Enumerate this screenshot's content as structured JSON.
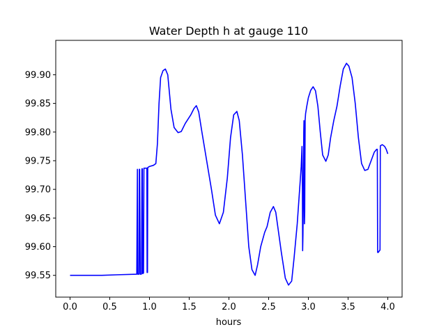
{
  "chart_data": {
    "type": "line",
    "title": "Water Depth h at gauge 110",
    "xlabel": "hours",
    "ylabel": "",
    "xlim": [
      -0.18,
      4.18
    ],
    "ylim": [
      99.512,
      99.96
    ],
    "grid": false,
    "legend": "none",
    "xticks": [
      0.0,
      0.5,
      1.0,
      1.5,
      2.0,
      2.5,
      3.0,
      3.5,
      4.0
    ],
    "xtick_labels": [
      "0.0",
      "0.5",
      "1.0",
      "1.5",
      "2.0",
      "2.5",
      "3.0",
      "3.5",
      "4.0"
    ],
    "yticks": [
      99.55,
      99.6,
      99.65,
      99.7,
      99.75,
      99.8,
      99.85,
      99.9
    ],
    "ytick_labels": [
      "99.55",
      "99.60",
      "99.65",
      "99.70",
      "99.75",
      "99.80",
      "99.85",
      "99.90"
    ],
    "series": [
      {
        "color": "#0000ff",
        "points": [
          [
            0.0,
            99.55
          ],
          [
            0.2,
            99.55
          ],
          [
            0.4,
            99.55
          ],
          [
            0.6,
            99.551
          ],
          [
            0.84,
            99.552
          ],
          [
            0.848,
            99.735
          ],
          [
            0.852,
            99.552
          ],
          [
            0.868,
            99.552
          ],
          [
            0.872,
            99.735
          ],
          [
            0.876,
            99.735
          ],
          [
            0.884,
            99.552
          ],
          [
            0.896,
            99.552
          ],
          [
            0.9,
            99.553
          ],
          [
            0.905,
            99.736
          ],
          [
            0.91,
            99.736
          ],
          [
            0.915,
            99.553
          ],
          [
            0.925,
            99.554
          ],
          [
            0.93,
            99.737
          ],
          [
            0.94,
            99.737
          ],
          [
            0.96,
            99.737
          ],
          [
            0.967,
            99.737
          ],
          [
            0.97,
            99.555
          ],
          [
            0.975,
            99.555
          ],
          [
            0.978,
            99.738
          ],
          [
            1.0,
            99.74
          ],
          [
            1.05,
            99.742
          ],
          [
            1.08,
            99.745
          ],
          [
            1.1,
            99.78
          ],
          [
            1.12,
            99.85
          ],
          [
            1.14,
            99.895
          ],
          [
            1.17,
            99.907
          ],
          [
            1.2,
            99.91
          ],
          [
            1.23,
            99.9
          ],
          [
            1.27,
            99.84
          ],
          [
            1.31,
            99.808
          ],
          [
            1.36,
            99.799
          ],
          [
            1.4,
            99.801
          ],
          [
            1.45,
            99.815
          ],
          [
            1.52,
            99.83
          ],
          [
            1.56,
            99.841
          ],
          [
            1.59,
            99.846
          ],
          [
            1.62,
            99.835
          ],
          [
            1.66,
            99.8
          ],
          [
            1.72,
            99.75
          ],
          [
            1.78,
            99.7
          ],
          [
            1.83,
            99.655
          ],
          [
            1.88,
            99.64
          ],
          [
            1.93,
            99.66
          ],
          [
            1.98,
            99.72
          ],
          [
            2.02,
            99.79
          ],
          [
            2.06,
            99.83
          ],
          [
            2.1,
            99.836
          ],
          [
            2.13,
            99.82
          ],
          [
            2.17,
            99.76
          ],
          [
            2.21,
            99.68
          ],
          [
            2.25,
            99.6
          ],
          [
            2.29,
            99.56
          ],
          [
            2.33,
            99.55
          ],
          [
            2.36,
            99.568
          ],
          [
            2.4,
            99.6
          ],
          [
            2.45,
            99.625
          ],
          [
            2.48,
            99.635
          ],
          [
            2.52,
            99.66
          ],
          [
            2.56,
            99.67
          ],
          [
            2.59,
            99.66
          ],
          [
            2.62,
            99.63
          ],
          [
            2.66,
            99.59
          ],
          [
            2.71,
            99.545
          ],
          [
            2.75,
            99.533
          ],
          [
            2.79,
            99.54
          ],
          [
            2.82,
            99.58
          ],
          [
            2.86,
            99.64
          ],
          [
            2.89,
            99.7
          ],
          [
            2.91,
            99.74
          ],
          [
            2.92,
            99.775
          ],
          [
            2.925,
            99.7
          ],
          [
            2.928,
            99.593
          ],
          [
            2.932,
            99.62
          ],
          [
            2.938,
            99.7
          ],
          [
            2.942,
            99.8
          ],
          [
            2.945,
            99.82
          ],
          [
            2.948,
            99.7
          ],
          [
            2.951,
            99.64
          ],
          [
            2.954,
            99.66
          ],
          [
            2.957,
            99.75
          ],
          [
            2.96,
            99.822
          ],
          [
            2.965,
            99.832
          ],
          [
            2.98,
            99.845
          ],
          [
            3.0,
            99.86
          ],
          [
            3.03,
            99.873
          ],
          [
            3.06,
            99.879
          ],
          [
            3.09,
            99.872
          ],
          [
            3.12,
            99.845
          ],
          [
            3.15,
            99.8
          ],
          [
            3.18,
            99.76
          ],
          [
            3.22,
            99.749
          ],
          [
            3.25,
            99.76
          ],
          [
            3.28,
            99.79
          ],
          [
            3.32,
            99.82
          ],
          [
            3.36,
            99.845
          ],
          [
            3.4,
            99.88
          ],
          [
            3.44,
            99.91
          ],
          [
            3.48,
            99.92
          ],
          [
            3.51,
            99.915
          ],
          [
            3.55,
            99.895
          ],
          [
            3.59,
            99.85
          ],
          [
            3.63,
            99.79
          ],
          [
            3.67,
            99.745
          ],
          [
            3.71,
            99.733
          ],
          [
            3.75,
            99.735
          ],
          [
            3.79,
            99.75
          ],
          [
            3.83,
            99.765
          ],
          [
            3.86,
            99.77
          ],
          [
            3.868,
            99.77
          ],
          [
            3.872,
            99.59
          ],
          [
            3.88,
            99.59
          ],
          [
            3.9,
            99.594
          ],
          [
            3.902,
            99.594
          ],
          [
            3.906,
            99.776
          ],
          [
            3.93,
            99.778
          ],
          [
            3.96,
            99.775
          ],
          [
            3.98,
            99.77
          ],
          [
            4.0,
            99.762
          ]
        ]
      }
    ]
  }
}
